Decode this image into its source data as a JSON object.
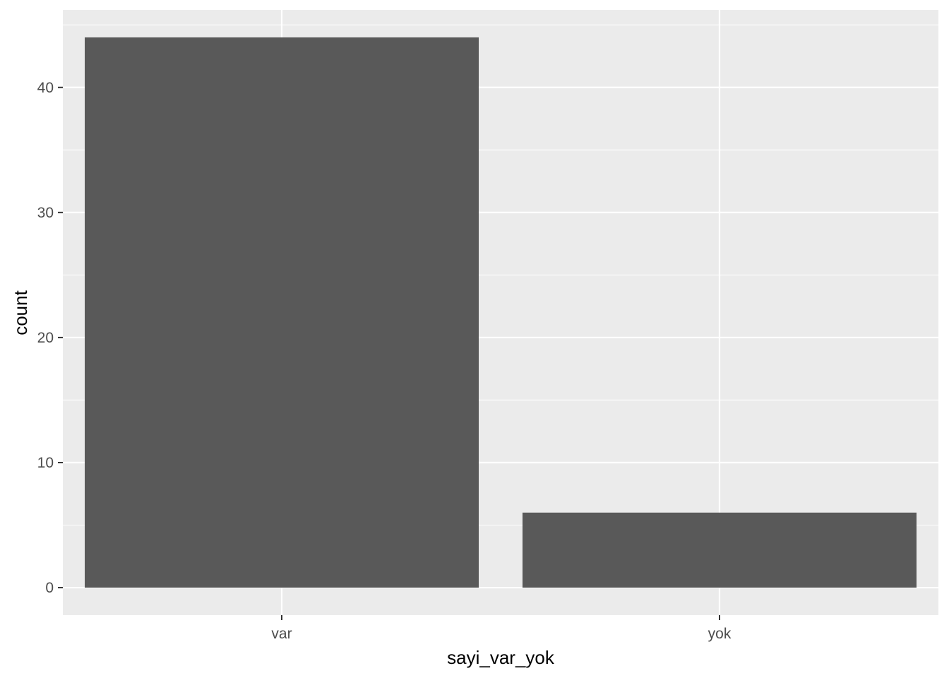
{
  "chart_data": {
    "type": "bar",
    "categories": [
      "var",
      "yok"
    ],
    "values": [
      44,
      6
    ],
    "title": "",
    "xlabel": "sayi_var_yok",
    "ylabel": "count",
    "ylim": [
      -2.2,
      46.2
    ],
    "yticks": [
      0,
      10,
      20,
      30,
      40
    ],
    "yminor": [
      5,
      15,
      25,
      35,
      45
    ],
    "grid": true,
    "colors": {
      "bar": "#595959",
      "panel": "#EBEBEB",
      "grid": "#FFFFFF",
      "tick_text": "#4D4D4D",
      "axis_title": "#000000"
    }
  }
}
